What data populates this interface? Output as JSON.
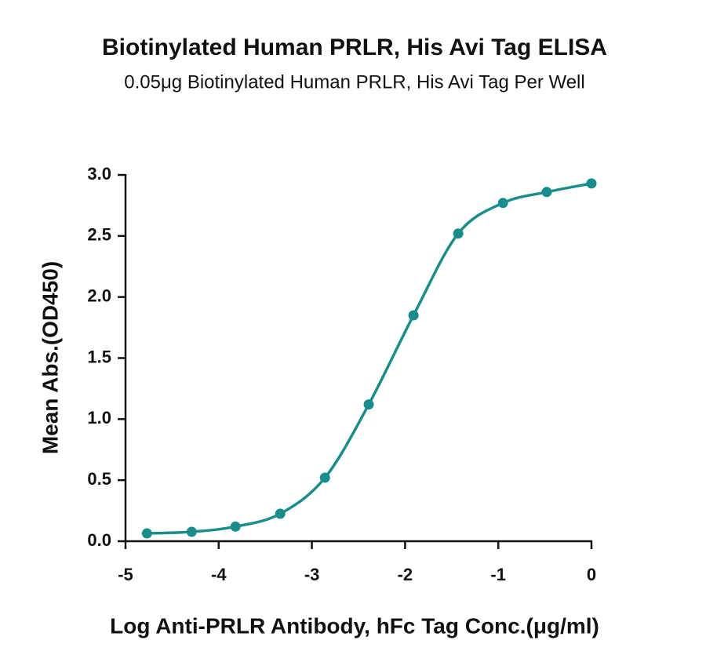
{
  "chart_data": {
    "type": "scatter",
    "title": "Biotinylated Human PRLR, His Avi Tag ELISA",
    "subtitle": "0.05μg Biotinylated Human PRLR, His Avi Tag Per Well",
    "x_label": "Log Anti-PRLR Antibody, hFc Tag Conc.(μg/ml)",
    "y_label": "Mean Abs.(OD450)",
    "x": [
      -4.77,
      -4.29,
      -3.82,
      -3.34,
      -2.86,
      -2.39,
      -1.91,
      -1.43,
      -0.95,
      -0.48,
      0
    ],
    "values": [
      0.064,
      0.077,
      0.12,
      0.225,
      0.52,
      1.12,
      1.85,
      2.52,
      2.77,
      2.86,
      2.93
    ],
    "color": "#1b8c8c",
    "fit_curve": true,
    "xlim": [
      -5,
      0
    ],
    "xticks": [
      -5,
      -4,
      -3,
      -2,
      -1,
      0
    ],
    "ylim": [
      0,
      3
    ],
    "yticks": [
      {
        "value": 0,
        "label": "0.0"
      },
      0.5,
      {
        "value": 1,
        "label": "1.0"
      },
      1.5,
      {
        "value": 2,
        "label": "2.0"
      },
      2.5,
      {
        "value": 3,
        "label": "3.0"
      }
    ]
  }
}
